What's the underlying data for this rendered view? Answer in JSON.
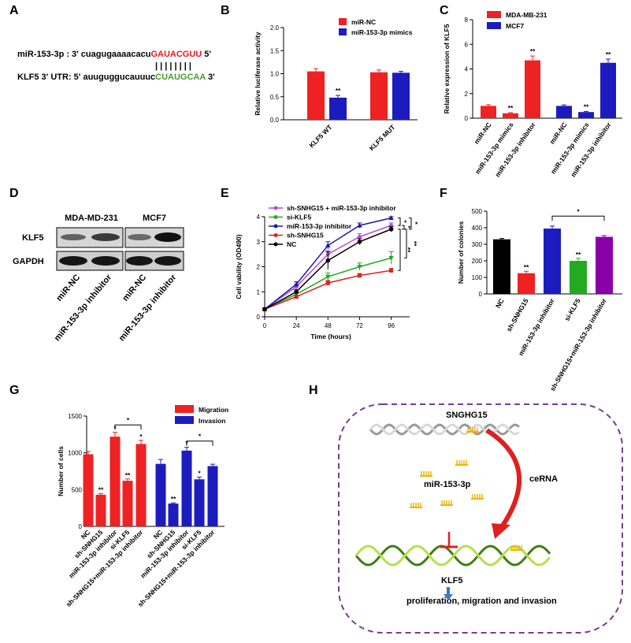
{
  "panels": {
    "A": "A",
    "B": "B",
    "C": "C",
    "D": "D",
    "E": "E",
    "F": "F",
    "G": "G",
    "H": "H"
  },
  "colors": {
    "red": "#ee2222",
    "blue": "#1c1cbe",
    "green": "#22aa22",
    "purple": "#8a00a8",
    "black": "#000000",
    "violet": "#b44ae0",
    "navy": "#1a1aaa",
    "darkred": "#dd2222"
  },
  "panelA": {
    "mir_label": "miR-153-3p",
    "mir_prefix": ": 3' cuagugaaaacacu",
    "mir_seed": "GAUACGUU",
    "mir_suffix": " 5'",
    "bars": "| | | | | | | |",
    "klf_label": "KLF5 3' UTR: 5' auuguggucauuuc",
    "klf_seed": "CUAUGCAA",
    "klf_suffix": " 3'"
  },
  "panelD": {
    "col1": "MDA-MD-231",
    "col2": "MCF7",
    "row1": "KLF5",
    "row2": "GAPDH",
    "lane_labels": [
      "miR-NC",
      "miR-153-3p inhibitor",
      "miR-NC",
      "miR-153-3p inhibitor"
    ]
  },
  "panelH": {
    "sngh": "SNGHG15",
    "mir": "miR-153-3p",
    "cerna": "ceRNA",
    "klf5": "KLF5",
    "outcome": "proliferation, migration and invasion"
  },
  "chart_data": [
    {
      "id": "B",
      "type": "bar",
      "ylabel": "Relative luciferase activity",
      "ylim": [
        0,
        2.0
      ],
      "yticks": [
        "0.0",
        "0.5",
        "1.0",
        "1.5",
        "2.0"
      ],
      "categories": [
        "KLF5 WT",
        "KLF5 MUT"
      ],
      "series": [
        {
          "name": "miR-NC",
          "color": "#ee2222",
          "values": [
            1.05,
            1.03
          ],
          "err": [
            0.06,
            0.05
          ]
        },
        {
          "name": "miR-153-3p mimics",
          "color": "#1c1cbe",
          "values": [
            0.48,
            1.02
          ],
          "err": [
            0.05,
            0.03
          ]
        }
      ],
      "sig": [
        {
          "text": "**",
          "cat": 0,
          "series": 1
        }
      ]
    },
    {
      "id": "C",
      "type": "bar",
      "ylabel": "Relative expression of KLF5",
      "ylim": [
        0,
        8
      ],
      "yticks": [
        "0",
        "2",
        "4",
        "6",
        "8"
      ],
      "legend": [
        {
          "name": "MDA-MB-231",
          "color": "#ee2222"
        },
        {
          "name": "MCF7",
          "color": "#1c1cbe"
        }
      ],
      "categories": [
        "miR-NC",
        "miR-153-3p mimics",
        "miR-153-3p inhibitor",
        "miR-NC",
        "miR-153-3p mimics",
        "miR-153-3p inhibitor"
      ],
      "values": [
        1.0,
        0.4,
        4.7,
        1.0,
        0.5,
        4.5
      ],
      "err": [
        0.1,
        0.05,
        0.35,
        0.08,
        0.05,
        0.3
      ],
      "colors": [
        "#ee2222",
        "#ee2222",
        "#ee2222",
        "#1c1cbe",
        "#1c1cbe",
        "#1c1cbe"
      ],
      "sig": [
        "",
        "**",
        "**",
        "",
        "**",
        "**"
      ]
    },
    {
      "id": "E",
      "type": "line",
      "xlabel": "Time (hours)",
      "ylabel": "Cell vability (OD490)",
      "xlim": [
        0,
        110
      ],
      "ylim": [
        0,
        4
      ],
      "xticks": [
        "0",
        "24",
        "48",
        "72",
        "96"
      ],
      "yticks": [
        "0",
        "1",
        "2",
        "3",
        "4"
      ],
      "x": [
        0,
        24,
        48,
        72,
        96
      ],
      "series": [
        {
          "name": "sh-SNHG15 + miR-153-3p inhibitor",
          "color": "#b44ae0",
          "marker": "diamond",
          "values": [
            0.3,
            1.2,
            2.5,
            3.2,
            3.65
          ],
          "err": [
            0.05,
            0.1,
            0.15,
            0.12,
            0.1
          ]
        },
        {
          "name": "si-KLF5",
          "color": "#22aa22",
          "marker": "triangle-down",
          "values": [
            0.3,
            0.9,
            1.6,
            2.0,
            2.35
          ],
          "err": [
            0.05,
            0.08,
            0.15,
            0.15,
            0.25
          ]
        },
        {
          "name": "miR-153-3p inhibitor",
          "color": "#1a1aaa",
          "marker": "triangle",
          "values": [
            0.3,
            1.3,
            2.85,
            3.65,
            3.95
          ],
          "err": [
            0.05,
            0.1,
            0.15,
            0.1,
            0.05
          ]
        },
        {
          "name": "sh-SNHG15",
          "color": "#dd2222",
          "marker": "square",
          "values": [
            0.3,
            0.8,
            1.35,
            1.65,
            1.85
          ],
          "err": [
            0.05,
            0.05,
            0.1,
            0.08,
            0.08
          ]
        },
        {
          "name": "NC",
          "color": "#000000",
          "marker": "circle",
          "values": [
            0.3,
            1.0,
            2.25,
            3.0,
            3.5
          ],
          "err": [
            0.05,
            0.08,
            0.35,
            0.12,
            0.1
          ]
        }
      ],
      "sig": [
        "*",
        "*",
        "*",
        "**",
        "**"
      ]
    },
    {
      "id": "F",
      "type": "bar",
      "ylabel": "Number of colonies",
      "ylim": [
        0,
        500
      ],
      "yticks": [
        "0",
        "100",
        "200",
        "300",
        "400",
        "500"
      ],
      "categories": [
        "NC",
        "sh-SNHG15",
        "miR-153-3p inhibitor",
        "si-KLF5",
        "sh-SNHG15+miR-153-3p inhibitor"
      ],
      "values": [
        330,
        125,
        395,
        200,
        345
      ],
      "err": [
        5,
        12,
        15,
        15,
        8
      ],
      "colors": [
        "#000000",
        "#ee2222",
        "#1c1cbe",
        "#22aa22",
        "#8a00a8"
      ],
      "sig": [
        "",
        "**",
        "",
        "**",
        ""
      ],
      "bracket": {
        "from": 2,
        "to": 4,
        "text": "*"
      }
    },
    {
      "id": "G",
      "type": "bar",
      "ylabel": "Number of cells",
      "ylim": [
        0,
        1500
      ],
      "yticks": [
        "0",
        "500",
        "1000",
        "1500"
      ],
      "legend": [
        {
          "name": "Migration",
          "color": "#ee2222"
        },
        {
          "name": "Invasion",
          "color": "#1c1cbe"
        }
      ],
      "categories": [
        "NC",
        "sh-SNHG15",
        "miR-153-3p inhibitor",
        "si-KLF5",
        "sh-SNHG15+miR-153-3p inhibitor",
        "NC",
        "sh-SNHG15",
        "miR-153-3p inhibitor",
        "si-KLF5",
        "sh-SNHG15+miR-153-3p inhibitor"
      ],
      "values": [
        980,
        430,
        1220,
        620,
        1120,
        850,
        310,
        1030,
        640,
        820
      ],
      "err": [
        40,
        15,
        60,
        25,
        50,
        60,
        10,
        45,
        30,
        25
      ],
      "colors": [
        "#ee2222",
        "#ee2222",
        "#ee2222",
        "#ee2222",
        "#ee2222",
        "#1c1cbe",
        "#1c1cbe",
        "#1c1cbe",
        "#1c1cbe",
        "#1c1cbe"
      ],
      "sig": [
        "",
        "**",
        "*",
        "**",
        "*",
        "",
        "**",
        "*",
        "*",
        ""
      ],
      "brackets": [
        {
          "from": 2,
          "to": 4,
          "text": "*"
        },
        {
          "from": 7,
          "to": 9,
          "text": "*"
        }
      ]
    }
  ]
}
